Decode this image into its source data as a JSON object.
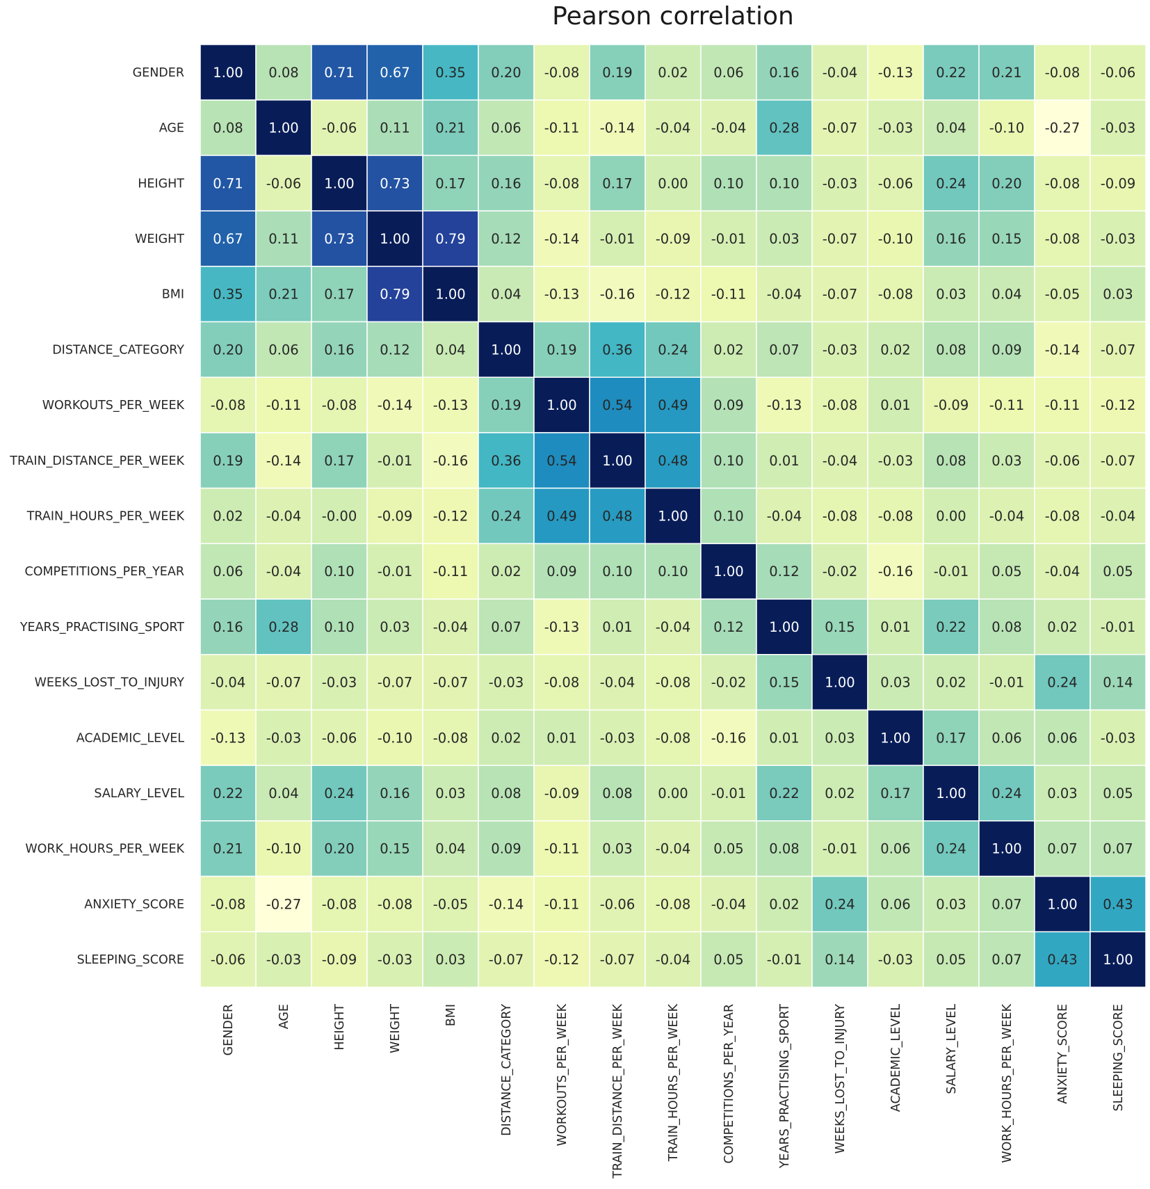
{
  "chart_data": {
    "type": "heatmap",
    "title": "Pearson correlation",
    "labels": [
      "GENDER",
      "AGE",
      "HEIGHT",
      "WEIGHT",
      "BMI",
      "DISTANCE_CATEGORY",
      "WORKOUTS_PER_WEEK",
      "TRAIN_DISTANCE_PER_WEEK",
      "TRAIN_HOURS_PER_WEEK",
      "COMPETITIONS_PER_YEAR",
      "YEARS_PRACTISING_SPORT",
      "WEEKS_LOST_TO_INJURY",
      "ACADEMIC_LEVEL",
      "SALARY_LEVEL",
      "WORK_HOURS_PER_WEEK",
      "ANXIETY_SCORE",
      "SLEEPING_SCORE"
    ],
    "matrix": [
      [
        1.0,
        0.08,
        0.71,
        0.67,
        0.35,
        0.2,
        -0.08,
        0.19,
        0.02,
        0.06,
        0.16,
        -0.04,
        -0.13,
        0.22,
        0.21,
        -0.08,
        -0.06
      ],
      [
        0.08,
        1.0,
        -0.06,
        0.11,
        0.21,
        0.06,
        -0.11,
        -0.14,
        -0.04,
        -0.04,
        0.28,
        -0.07,
        -0.03,
        0.04,
        -0.1,
        -0.27,
        -0.03
      ],
      [
        0.71,
        -0.06,
        1.0,
        0.73,
        0.17,
        0.16,
        -0.08,
        0.17,
        -0.0,
        0.1,
        0.1,
        -0.03,
        -0.06,
        0.24,
        0.2,
        -0.08,
        -0.09
      ],
      [
        0.67,
        0.11,
        0.73,
        1.0,
        0.79,
        0.12,
        -0.14,
        -0.01,
        -0.09,
        -0.01,
        0.03,
        -0.07,
        -0.1,
        0.16,
        0.15,
        -0.08,
        -0.03
      ],
      [
        0.35,
        0.21,
        0.17,
        0.79,
        1.0,
        0.04,
        -0.13,
        -0.16,
        -0.12,
        -0.11,
        -0.04,
        -0.07,
        -0.08,
        0.03,
        0.04,
        -0.05,
        0.03
      ],
      [
        0.2,
        0.06,
        0.16,
        0.12,
        0.04,
        1.0,
        0.19,
        0.36,
        0.24,
        0.02,
        0.07,
        -0.03,
        0.02,
        0.08,
        0.09,
        -0.14,
        -0.07
      ],
      [
        -0.08,
        -0.11,
        -0.08,
        -0.14,
        -0.13,
        0.19,
        1.0,
        0.54,
        0.49,
        0.09,
        -0.13,
        -0.08,
        0.01,
        -0.09,
        -0.11,
        -0.11,
        -0.12
      ],
      [
        0.19,
        -0.14,
        0.17,
        -0.01,
        -0.16,
        0.36,
        0.54,
        1.0,
        0.48,
        0.1,
        0.01,
        -0.04,
        -0.03,
        0.08,
        0.03,
        -0.06,
        -0.07
      ],
      [
        0.02,
        -0.04,
        -0.0,
        -0.09,
        -0.12,
        0.24,
        0.49,
        0.48,
        1.0,
        0.1,
        -0.04,
        -0.08,
        -0.08,
        0.0,
        -0.04,
        -0.08,
        -0.04
      ],
      [
        0.06,
        -0.04,
        0.1,
        -0.01,
        -0.11,
        0.02,
        0.09,
        0.1,
        0.1,
        1.0,
        0.12,
        -0.02,
        -0.16,
        -0.01,
        0.05,
        -0.04,
        0.05
      ],
      [
        0.16,
        0.28,
        0.1,
        0.03,
        -0.04,
        0.07,
        -0.13,
        0.01,
        -0.04,
        0.12,
        1.0,
        0.15,
        0.01,
        0.22,
        0.08,
        0.02,
        -0.01
      ],
      [
        -0.04,
        -0.07,
        -0.03,
        -0.07,
        -0.07,
        -0.03,
        -0.08,
        -0.04,
        -0.08,
        -0.02,
        0.15,
        1.0,
        0.03,
        0.02,
        -0.01,
        0.24,
        0.14
      ],
      [
        -0.13,
        -0.03,
        -0.06,
        -0.1,
        -0.08,
        0.02,
        0.01,
        -0.03,
        -0.08,
        -0.16,
        0.01,
        0.03,
        1.0,
        0.17,
        0.06,
        0.06,
        -0.03
      ],
      [
        0.22,
        0.04,
        0.24,
        0.16,
        0.03,
        0.08,
        -0.09,
        0.08,
        0.0,
        -0.01,
        0.22,
        0.02,
        0.17,
        1.0,
        0.24,
        0.03,
        0.05
      ],
      [
        0.21,
        -0.1,
        0.2,
        0.15,
        0.04,
        0.09,
        -0.11,
        0.03,
        -0.04,
        0.05,
        0.08,
        -0.01,
        0.06,
        0.24,
        1.0,
        0.07,
        0.07
      ],
      [
        -0.08,
        -0.27,
        -0.08,
        -0.08,
        -0.05,
        -0.14,
        -0.11,
        -0.06,
        -0.08,
        -0.04,
        0.02,
        0.24,
        0.06,
        0.03,
        0.07,
        1.0,
        0.43
      ],
      [
        -0.06,
        -0.03,
        -0.09,
        -0.03,
        0.03,
        -0.07,
        -0.12,
        -0.07,
        -0.04,
        0.05,
        -0.01,
        0.14,
        -0.03,
        0.05,
        0.07,
        0.43,
        1.0
      ]
    ],
    "value_format": "0.00",
    "colormap": "YlGnBu",
    "color_range": [
      -0.27,
      1.0
    ],
    "colorbar": false
  }
}
